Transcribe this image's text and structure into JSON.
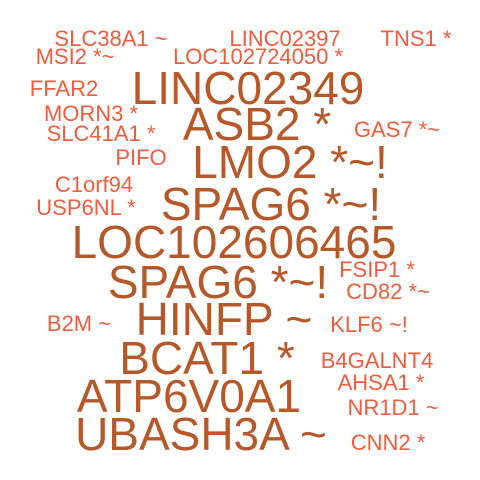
{
  "colors": {
    "background": "#ffffff",
    "large": "#B5582A",
    "small": "#EE5D3F"
  },
  "words": [
    {
      "text": "SLC38A1 ~",
      "tier": "small"
    },
    {
      "text": "LINC02397",
      "tier": "small"
    },
    {
      "text": "TNS1 *",
      "tier": "small"
    },
    {
      "text": "MSI2 *~",
      "tier": "small"
    },
    {
      "text": "LOC102724050 *",
      "tier": "small"
    },
    {
      "text": "FFAR2",
      "tier": "small"
    },
    {
      "text": "LINC02349",
      "tier": "large"
    },
    {
      "text": "MORN3 *",
      "tier": "small"
    },
    {
      "text": "ASB2 *",
      "tier": "large"
    },
    {
      "text": "SLC41A1 *",
      "tier": "small"
    },
    {
      "text": "GAS7 *~",
      "tier": "small"
    },
    {
      "text": "PIFO",
      "tier": "small"
    },
    {
      "text": "LMO2 *~!",
      "tier": "large"
    },
    {
      "text": "C1orf94",
      "tier": "small"
    },
    {
      "text": "USP6NL *",
      "tier": "small"
    },
    {
      "text": "SPAG6 *~!",
      "tier": "large"
    },
    {
      "text": "LOC102606465",
      "tier": "large"
    },
    {
      "text": "SPAG6 *~!",
      "tier": "large"
    },
    {
      "text": "FSIP1 *",
      "tier": "small"
    },
    {
      "text": "CD82 *~",
      "tier": "small"
    },
    {
      "text": "B2M ~",
      "tier": "small"
    },
    {
      "text": "HINFP ~",
      "tier": "large"
    },
    {
      "text": "KLF6 ~!",
      "tier": "small"
    },
    {
      "text": "BCAT1 *",
      "tier": "large"
    },
    {
      "text": "B4GALNT4",
      "tier": "small"
    },
    {
      "text": "AHSA1 *",
      "tier": "small"
    },
    {
      "text": "ATP6V0A1",
      "tier": "large"
    },
    {
      "text": "NR1D1 ~",
      "tier": "small"
    },
    {
      "text": "UBASH3A ~",
      "tier": "large"
    },
    {
      "text": "CNN2 *",
      "tier": "small"
    }
  ]
}
